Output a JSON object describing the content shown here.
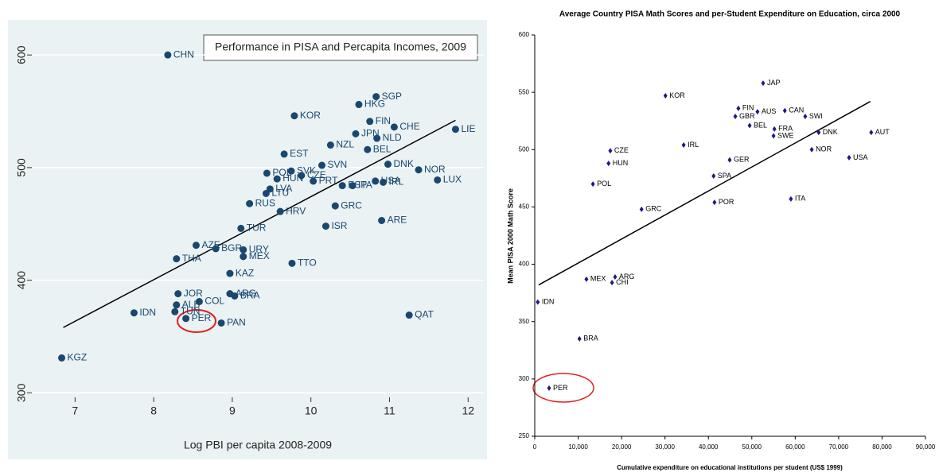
{
  "chart_data": [
    {
      "type": "scatter",
      "title": "Performance in PISA and Percapita Incomes, 2009",
      "x_label": "Log PBI per capita 2008-2009",
      "color": "#1a476f",
      "background": "#eaf2f3",
      "grid": true,
      "categories": [
        "CHN",
        "SGP",
        "HKG",
        "KOR",
        "FIN",
        "CHE",
        "LIE",
        "JPN",
        "NLD",
        "NZL",
        "EST",
        "BEL",
        "DNK",
        "SVN",
        "NOR",
        "POL",
        "SVK",
        "CZE",
        "HUN",
        "PRT",
        "LUX",
        "ESP",
        "ITA",
        "USA",
        "IRL",
        "LVA",
        "LTU",
        "RUS",
        "HRV",
        "GRC",
        "ARE",
        "ISR",
        "TUR",
        "AZE",
        "BGR",
        "URY",
        "MEX",
        "THA",
        "TTO",
        "KAZ",
        "JOR",
        "ARG",
        "BRA",
        "COL",
        "ALB",
        "TUN",
        "IDN",
        "PER",
        "PAN",
        "QAT",
        "KGZ"
      ],
      "x": [
        8.18,
        10.83,
        10.61,
        9.79,
        10.75,
        11.06,
        11.84,
        10.57,
        10.84,
        10.25,
        9.66,
        10.72,
        10.98,
        10.14,
        11.37,
        9.44,
        9.75,
        9.88,
        9.57,
        10.03,
        11.61,
        10.4,
        10.53,
        10.82,
        10.92,
        9.48,
        9.43,
        9.22,
        9.61,
        10.31,
        10.9,
        10.19,
        9.11,
        8.54,
        8.79,
        9.14,
        9.14,
        8.29,
        9.76,
        8.97,
        8.31,
        8.97,
        9.03,
        8.58,
        8.29,
        8.27,
        7.75,
        8.41,
        8.86,
        11.25,
        6.83
      ],
      "y": [
        600,
        563,
        556,
        546,
        541,
        536,
        534,
        530,
        526,
        520,
        512,
        516,
        503,
        502,
        498,
        495,
        497,
        493,
        490,
        488,
        489,
        484,
        484,
        488,
        487,
        481,
        477,
        468,
        461,
        466,
        453,
        448,
        446,
        431,
        428,
        427,
        421,
        419,
        415,
        406,
        388,
        388,
        386,
        381,
        378,
        372,
        371,
        366,
        362,
        369,
        331
      ],
      "trendline": {
        "x": [
          6.85,
          11.84
        ],
        "y": [
          358,
          542
        ]
      },
      "xlim": [
        6.45,
        12.2
      ],
      "ylim": [
        296,
        622
      ],
      "xticks": [
        7,
        8,
        9,
        10,
        11,
        12
      ],
      "yticks": [
        300,
        400,
        500,
        600
      ]
    },
    {
      "type": "scatter",
      "title": "Average Country PISA Math Scores and per-Student Expenditure on Education, circa 2000",
      "x_label": "Cumulative expenditure on educational institutions per student (US$ 1999)",
      "y_label": "Mean PISA 2000 Math Score",
      "color": "#1a1a8c",
      "background": "#ffffff",
      "grid": false,
      "categories": [
        "JAP",
        "KOR",
        "FIN",
        "GBR",
        "AUS",
        "CAN",
        "SWI",
        "BEL",
        "FRA",
        "SWE",
        "DNK",
        "AUT",
        "NOR",
        "USA",
        "IRL",
        "CZE",
        "HUN",
        "GER",
        "SPA",
        "POL",
        "ITA",
        "POR",
        "GRC",
        "MEX",
        "ARG",
        "CHI",
        "IDN",
        "BRA",
        "PER"
      ],
      "x": [
        52600,
        30100,
        46900,
        46200,
        51300,
        57600,
        62300,
        49500,
        55200,
        55000,
        65400,
        77500,
        63800,
        72400,
        34300,
        17400,
        17000,
        44900,
        41200,
        13400,
        59000,
        41400,
        24600,
        11900,
        18500,
        17800,
        700,
        10300,
        3300
      ],
      "y": [
        558,
        547,
        536,
        529,
        533,
        534,
        529,
        521,
        518,
        512,
        515,
        515,
        500,
        493,
        504,
        499,
        488,
        491,
        477,
        470,
        457,
        454,
        448,
        387,
        389,
        384,
        367,
        335,
        292
      ],
      "trendline": {
        "x": [
          900,
          77300
        ],
        "y": [
          382,
          542
        ]
      },
      "xlim": [
        0,
        90000
      ],
      "ylim": [
        250,
        600
      ],
      "xticks": [
        0,
        {
          "value": 10000,
          "label": "10,000"
        },
        {
          "value": 20000,
          "label": "20,000"
        },
        {
          "value": 30000,
          "label": "30,000"
        },
        {
          "value": 40000,
          "label": "40,000"
        },
        {
          "value": 50000,
          "label": "50,000"
        },
        {
          "value": 60000,
          "label": "60,000"
        },
        {
          "value": 70000,
          "label": "70,000"
        },
        {
          "value": 80000,
          "label": "80,000"
        },
        {
          "value": 90000,
          "label": "90,000"
        }
      ],
      "yticks": [
        250,
        300,
        350,
        400,
        450,
        500,
        550,
        600
      ]
    }
  ]
}
